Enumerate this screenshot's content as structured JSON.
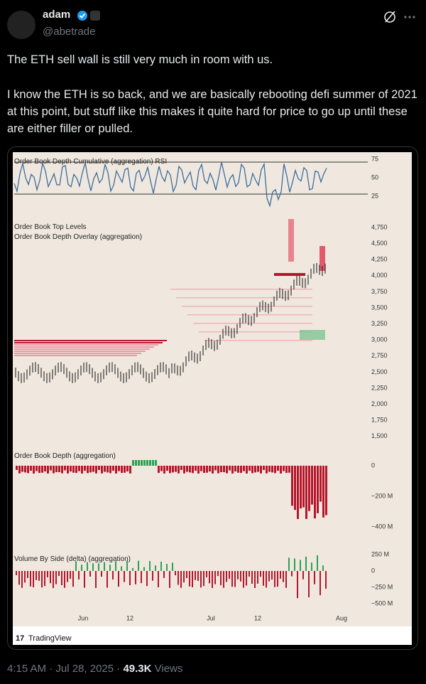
{
  "tweet": {
    "name": "adam",
    "handle": "@abetrade",
    "paragraphs": [
      "The ETH sell wall is still very much in room with us.",
      "I know the ETH is so back, and we are basically rebooting defi summer of 2021 at this point, but stuff like this makes it quite hard for price to go up until these are either filler or pulled."
    ],
    "timestamp": "4:15 AM · Jul 28, 2025 · ",
    "views": "49.3K",
    "views_label": " Views"
  },
  "image": {
    "rsi_title": "Order Book Depth Cumulative (aggregation) RSI",
    "rsi_ticks": [
      "75",
      "50",
      "25"
    ],
    "price_titles": [
      "Order Book Top Levels",
      "Order Book Depth Overlay (aggregation)"
    ],
    "price_ticks": [
      "4,750",
      "4,500",
      "4,250",
      "4,000",
      "3,750",
      "3,500",
      "3,250",
      "3,000",
      "2,750",
      "2,500",
      "2,250",
      "2,000",
      "1,750",
      "1,500"
    ],
    "depth_title": "Order Book Depth (aggregation)",
    "depth_ticks": [
      "0",
      "−200 M",
      "−400 M"
    ],
    "volume_title": "Volume By Side (delta) (aggregation)",
    "volume_ticks": [
      "250 M",
      "0",
      "−250 M",
      "−500 M"
    ],
    "x_labels": [
      "Jun",
      "12",
      "Jul",
      "12",
      "Aug"
    ],
    "brand": "TradingView"
  }
}
